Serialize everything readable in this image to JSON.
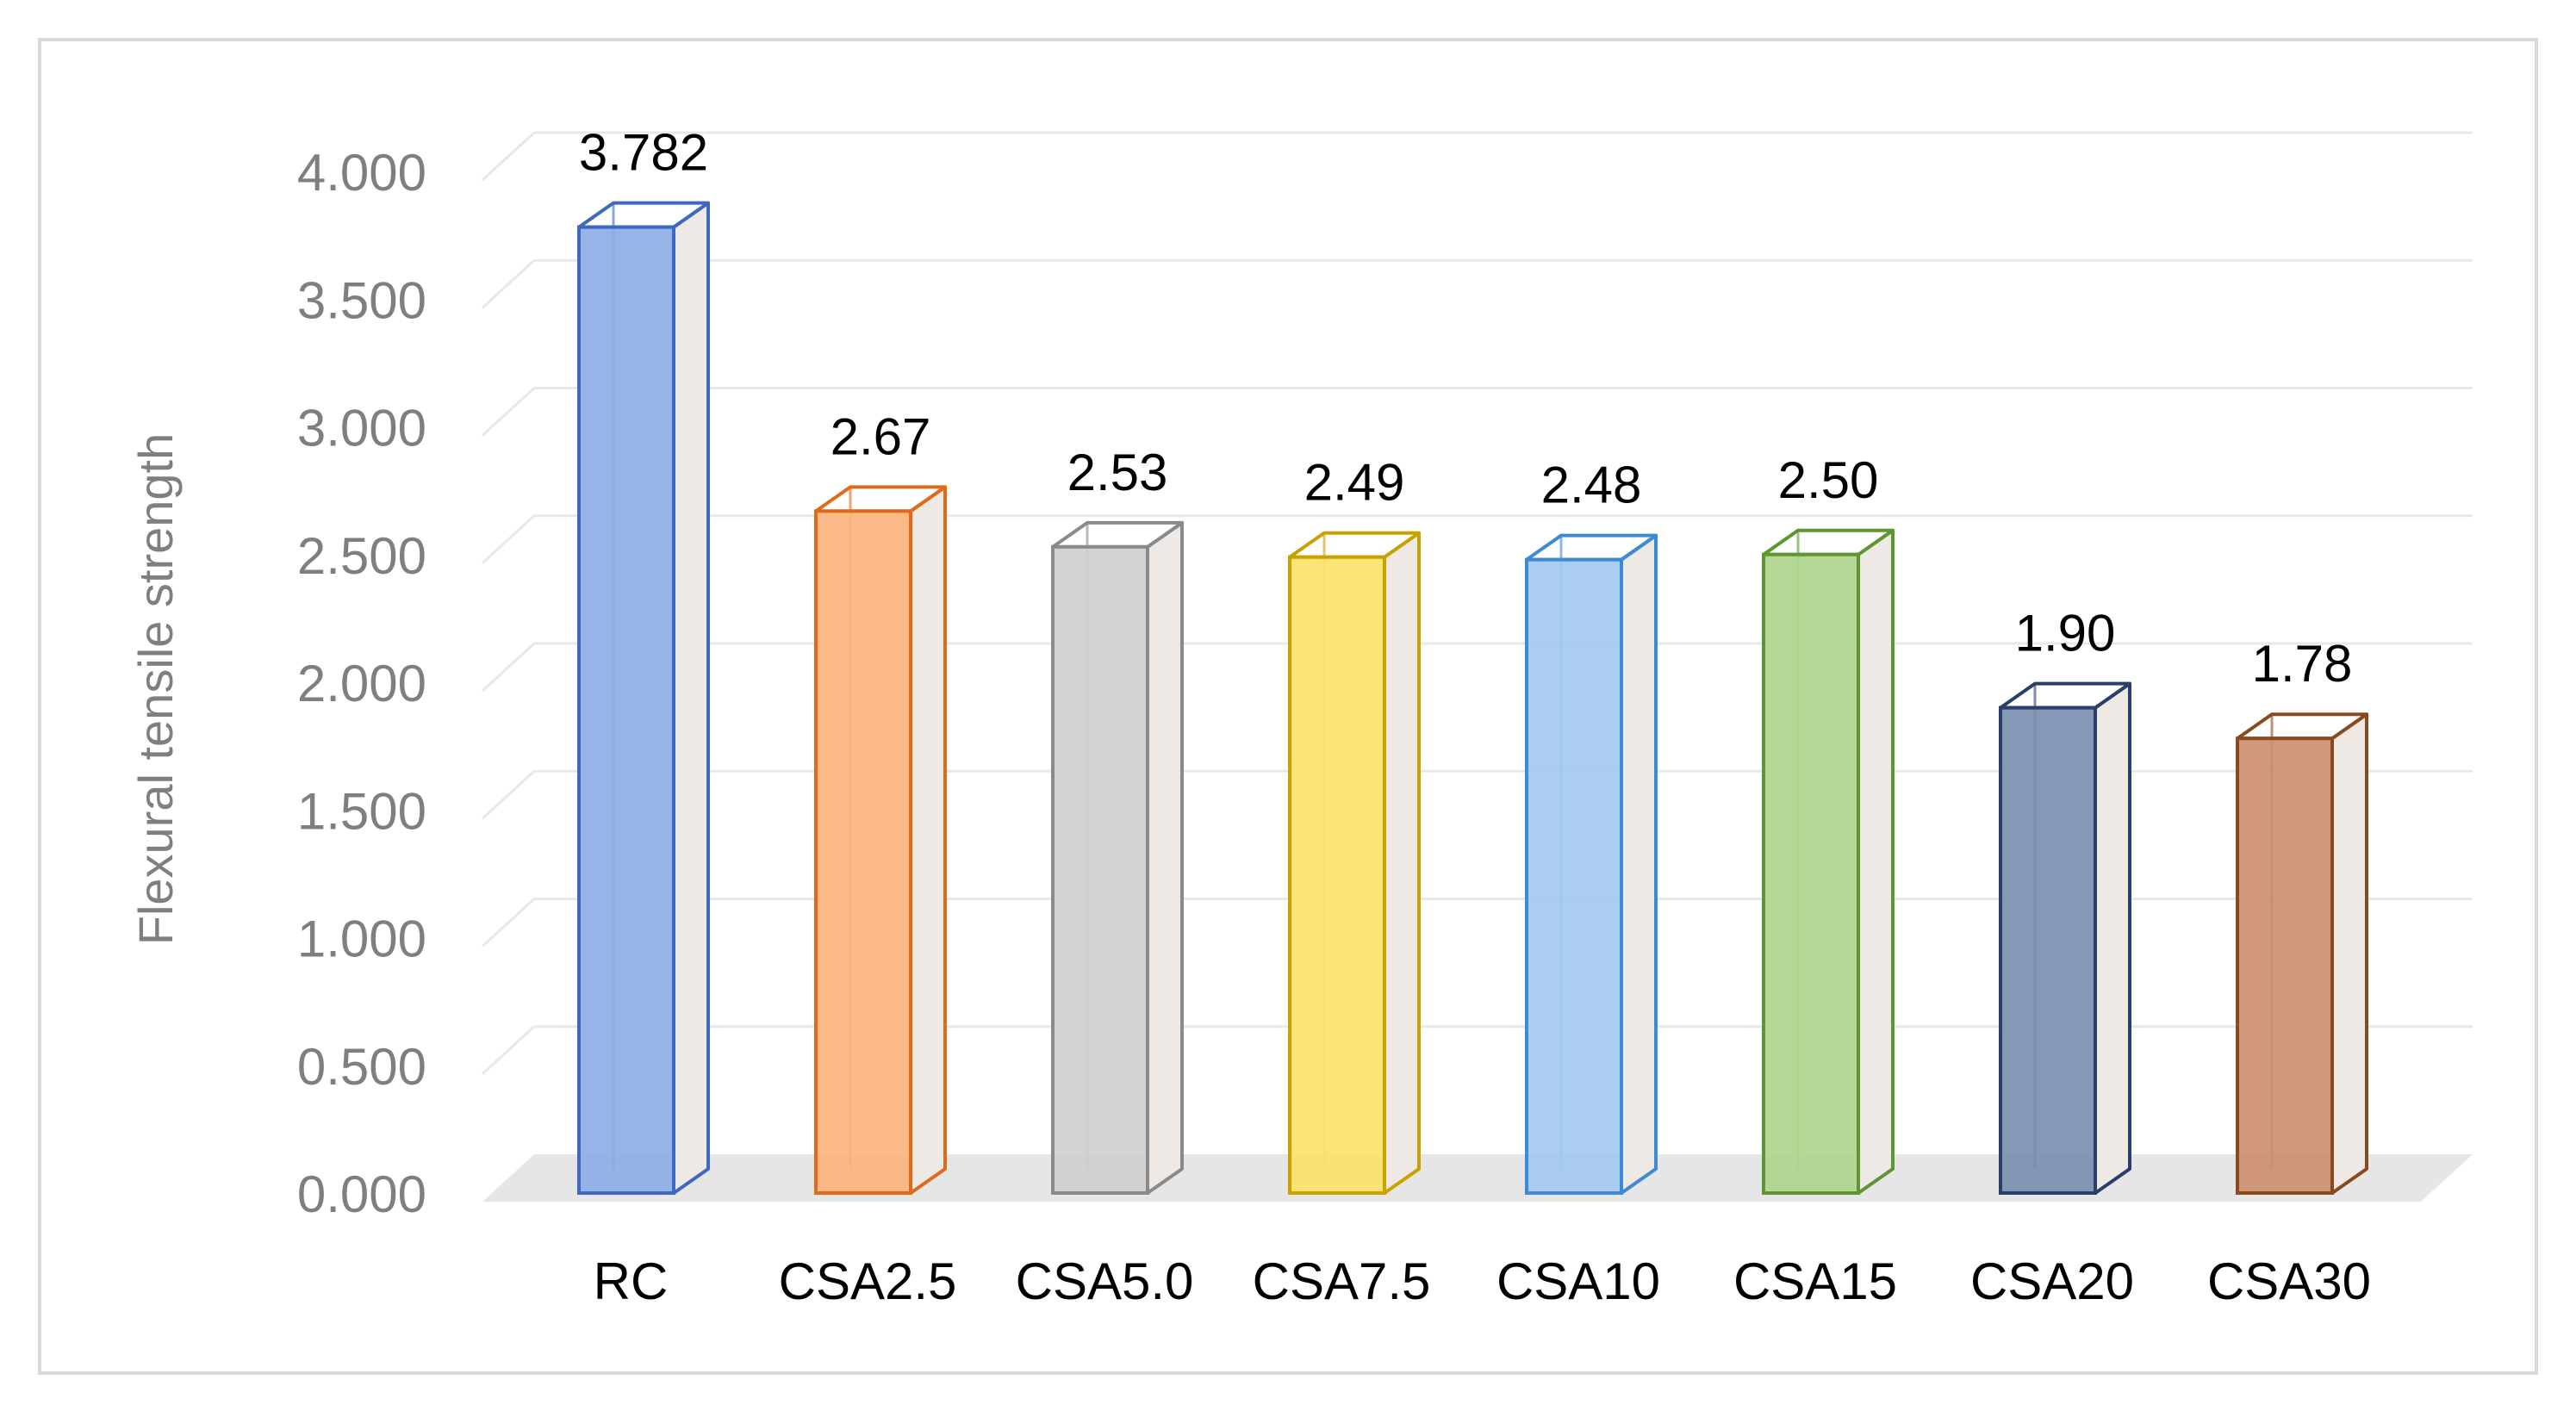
{
  "chart_data": {
    "type": "bar",
    "title": "",
    "xlabel": "",
    "ylabel": "Flexural tensile strength",
    "categories": [
      "RC",
      "CSA2.5",
      "CSA5.0",
      "CSA7.5",
      "CSA10",
      "CSA15",
      "CSA20",
      "CSA30"
    ],
    "values": [
      3.782,
      2.67,
      2.53,
      2.49,
      2.48,
      2.5,
      1.9,
      1.78
    ],
    "data_labels": [
      "3.782",
      "2.67",
      "2.53",
      "2.49",
      "2.48",
      "2.50",
      "1.90",
      "1.78"
    ],
    "y_ticks": [
      "0.000",
      "0.500",
      "1.000",
      "1.500",
      "2.000",
      "2.500",
      "3.000",
      "3.500",
      "4.000"
    ],
    "ylim": [
      0,
      4.0
    ],
    "grid": true,
    "legend": "none",
    "style": "3d-column",
    "colors": {
      "fills": [
        "#8eaee6",
        "#fbb47e",
        "#cfcfcf",
        "#fde26a",
        "#a3c9f0",
        "#afd58e",
        "#7b8fb0",
        "#cc9070"
      ],
      "edges": [
        "#3f68c0",
        "#e06a1a",
        "#8a8a8a",
        "#c9a200",
        "#3e8ad6",
        "#5e9632",
        "#2a3f6b",
        "#8a4a20"
      ],
      "side_fill": "#efe9e6",
      "grid": "#e8e8e8",
      "floor": "#e6e6e6"
    }
  }
}
